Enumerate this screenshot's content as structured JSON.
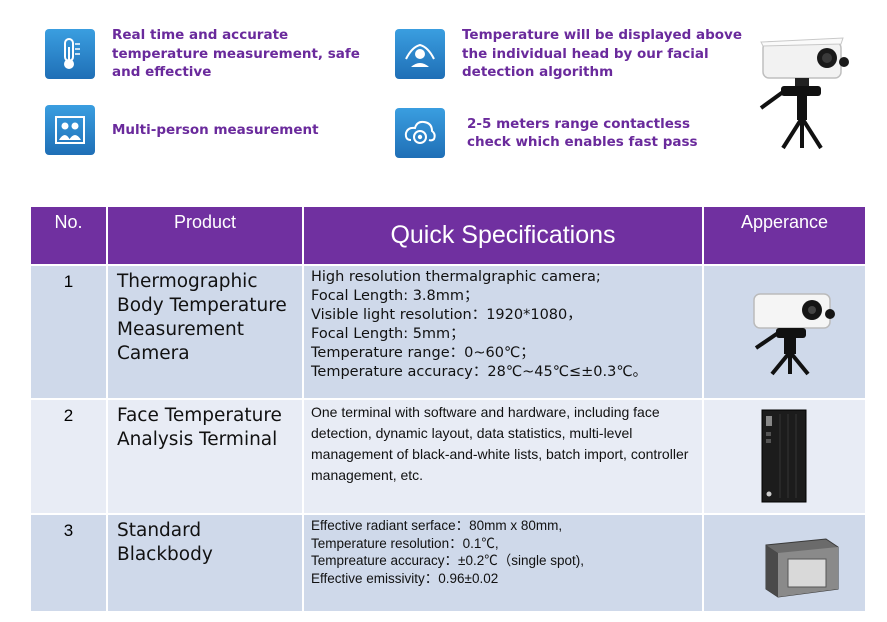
{
  "features": [
    {
      "icon": "thermometer-icon",
      "lines": [
        "Real time and accurate",
        "temperature measurement, safe",
        "and effective"
      ]
    },
    {
      "icon": "face-scan-icon",
      "lines": [
        "Temperature will be displayed above",
        "the individual head by our facial",
        "detection algorithm"
      ]
    },
    {
      "icon": "multi-person-icon",
      "lines": [
        "Multi-person measurement"
      ]
    },
    {
      "icon": "contactless-icon",
      "lines": [
        "2-5 meters range contactless",
        "check which enables fast pass"
      ]
    }
  ],
  "table": {
    "headers": {
      "no": "No.",
      "product": "Product",
      "specs": "Quick Specifications",
      "appearance": "Apperance"
    },
    "rows": [
      {
        "no": "1",
        "product": [
          "Thermographic",
          "Body Temperature",
          "Measurement",
          "Camera"
        ],
        "specs": [
          "High resolution thermalgraphic camera;",
          "Focal Length: 3.8mm；",
          "Visible light resolution：1920*1080，",
          "Focal Length: 5mm；",
          "Temperature range：0~60℃；",
          "Temperature accuracy：28℃~45℃≤±0.3℃。"
        ]
      },
      {
        "no": "2",
        "product": [
          "Face Temperature",
          "Analysis Terminal"
        ],
        "specs": [
          " One terminal with software and hardware, including face detection, dynamic layout, data statistics, multi-level management of black-and-white lists, batch import, controller management, etc."
        ]
      },
      {
        "no": "3",
        "product": [
          "Standard",
          "Blackbody"
        ],
        "specs": [
          " Effective radiant serface：80mm x 80mm,",
          "Temperature resolution：0.1℃,",
          "Tempreature  accuracy：±0.2℃（single spot),",
          "Effective emissivity：0.96±0.02"
        ]
      }
    ]
  },
  "colors": {
    "accent": "#7030a0",
    "feature_text": "#6a2a9c",
    "icon_blue": "#2a86cf",
    "row_dark": "#cfd9ea",
    "row_light": "#e8ecf5"
  }
}
